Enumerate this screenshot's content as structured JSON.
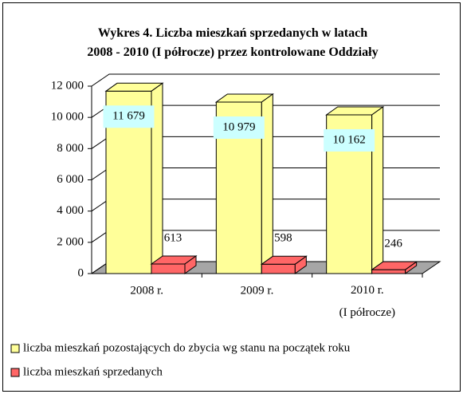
{
  "chart_data": {
    "type": "bar3d",
    "title": "Wykres 4. Liczba mieszkań sprzedanych w latach\n2008 - 2010 (I półrocze) przez kontrolowane Oddziały",
    "categories": [
      "2008 r.",
      "2009 r.",
      "2010 r.\n(I półrocze)"
    ],
    "series": [
      {
        "name": "liczba mieszkań pozostających do zbycia wg stanu na początek roku",
        "color": "#ffff99",
        "values": [
          11679,
          10979,
          10162
        ],
        "value_labels": [
          "11 679",
          "10 979",
          "10 162"
        ]
      },
      {
        "name": "liczba mieszkań sprzedanych",
        "color": "#ff6666",
        "values": [
          613,
          598,
          246
        ]
      }
    ],
    "ylim": [
      0,
      12000
    ],
    "yticks": [
      0,
      {
        "value": 2000,
        "label": "2 000"
      },
      {
        "value": 4000,
        "label": "4 000"
      },
      {
        "value": 6000,
        "label": "6 000"
      },
      {
        "value": 8000,
        "label": "8 000"
      },
      {
        "value": 10000,
        "label": "10 000"
      },
      {
        "value": 12000,
        "label": "12 000"
      }
    ],
    "grid": true
  }
}
